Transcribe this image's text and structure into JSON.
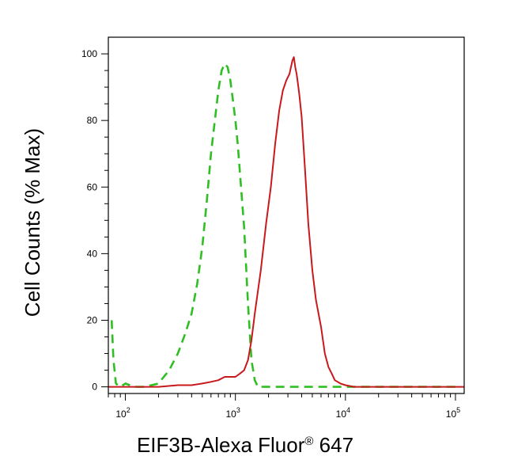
{
  "chart_data": {
    "type": "line",
    "title": "",
    "xlabel": "EIF3B-Alexa Fluor",
    "xlabel_mark": "®",
    "xlabel_suffix": " 647",
    "ylabel": "Cell Counts (% Max)",
    "x_scale": "log",
    "xlim": [
      70,
      120000
    ],
    "ylim": [
      -2,
      105
    ],
    "x_ticks": [
      {
        "value": 100,
        "base": "10",
        "exp": "2"
      },
      {
        "value": 1000,
        "base": "10",
        "exp": "3"
      },
      {
        "value": 10000,
        "base": "10",
        "exp": "4"
      },
      {
        "value": 100000,
        "base": "10",
        "exp": "5"
      }
    ],
    "y_ticks": [
      0,
      20,
      40,
      60,
      80,
      100
    ],
    "y_tick_labels": [
      "0",
      "20",
      "40",
      "60",
      "80",
      "100"
    ],
    "grid": false,
    "legend": "none",
    "series": [
      {
        "color": "#2fbf22",
        "style": "dashed",
        "x": [
          75,
          78,
          82,
          90,
          100,
          120,
          150,
          200,
          250,
          300,
          350,
          400,
          450,
          500,
          550,
          600,
          650,
          700,
          750,
          800,
          850,
          900,
          950,
          1000,
          1050,
          1100,
          1200,
          1300,
          1400,
          1500,
          1600,
          1800,
          2000,
          2500,
          3000,
          4000,
          5000,
          10000,
          20000,
          100000
        ],
        "y": [
          20,
          8,
          1,
          0,
          1,
          0,
          0,
          1,
          5,
          10,
          16,
          22,
          31,
          42,
          56,
          70,
          80,
          89,
          95,
          97,
          96,
          92,
          86,
          80,
          73,
          64,
          48,
          25,
          8,
          2,
          0,
          0,
          0,
          0,
          0,
          0,
          0,
          0,
          0,
          0
        ]
      },
      {
        "color": "#c8191c",
        "style": "solid",
        "x": [
          70,
          100,
          200,
          300,
          400,
          500,
          600,
          700,
          800,
          900,
          1000,
          1100,
          1200,
          1300,
          1400,
          1500,
          1700,
          1900,
          2100,
          2300,
          2500,
          2700,
          2900,
          3100,
          3300,
          3400,
          3500,
          3600,
          3700,
          3800,
          4000,
          4300,
          4600,
          5000,
          5400,
          6000,
          6500,
          7000,
          7500,
          8000,
          9000,
          10000,
          12000,
          15000,
          20000,
          50000,
          120000
        ],
        "y": [
          0,
          0,
          0,
          0.5,
          0.5,
          1,
          1.5,
          2,
          3,
          3,
          3,
          4,
          5,
          8,
          14,
          22,
          35,
          49,
          60,
          73,
          83,
          89,
          92,
          94,
          98,
          99,
          96,
          94,
          91,
          88,
          81,
          65,
          49,
          35,
          26,
          18,
          10,
          6,
          4,
          2,
          1,
          0.5,
          0,
          0,
          0,
          0,
          0
        ]
      }
    ]
  }
}
